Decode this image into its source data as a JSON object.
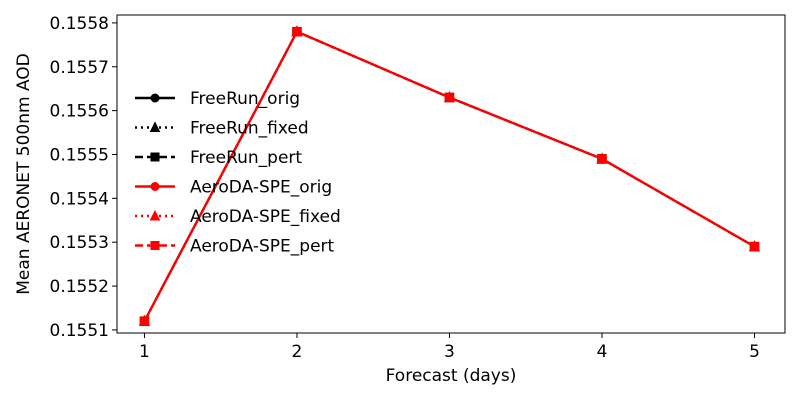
{
  "chart_data": {
    "type": "line",
    "xlabel": "Forecast (days)",
    "ylabel": "Mean AERONET 500nm AOD",
    "x": [
      1,
      2,
      3,
      4,
      5
    ],
    "xticks": [
      "1",
      "2",
      "3",
      "4",
      "5"
    ],
    "yticks": [
      "0.1551",
      "0.1552",
      "0.1553",
      "0.1554",
      "0.1555",
      "0.1556",
      "0.1557",
      "0.1558"
    ],
    "xlim": [
      0.82,
      5.2
    ],
    "ylim": [
      0.155093,
      0.155818
    ],
    "grid": false,
    "legend_position": "center-left",
    "series": [
      {
        "name": "FreeRun_orig",
        "color": "#000000",
        "linestyle": "solid",
        "marker": "circle",
        "values": [
          0.15512,
          0.15578,
          0.15563,
          0.15549,
          0.15529
        ]
      },
      {
        "name": "FreeRun_fixed",
        "color": "#000000",
        "linestyle": "dotted",
        "marker": "triangle",
        "values": [
          0.15512,
          0.15578,
          0.15563,
          0.15549,
          0.15529
        ]
      },
      {
        "name": "FreeRun_pert",
        "color": "#000000",
        "linestyle": "dashed",
        "marker": "square",
        "values": [
          0.15512,
          0.15578,
          0.15563,
          0.15549,
          0.15529
        ]
      },
      {
        "name": "AeroDA-SPE_orig",
        "color": "#ff0000",
        "linestyle": "solid",
        "marker": "circle",
        "values": [
          0.15512,
          0.15578,
          0.15563,
          0.15549,
          0.15529
        ]
      },
      {
        "name": "AeroDA-SPE_fixed",
        "color": "#ff0000",
        "linestyle": "dotted",
        "marker": "triangle",
        "values": [
          0.15512,
          0.15578,
          0.15563,
          0.15549,
          0.15529
        ]
      },
      {
        "name": "AeroDA-SPE_pert",
        "color": "#ff0000",
        "linestyle": "dashed",
        "marker": "square",
        "values": [
          0.15512,
          0.15578,
          0.15563,
          0.15549,
          0.15529
        ]
      }
    ]
  }
}
